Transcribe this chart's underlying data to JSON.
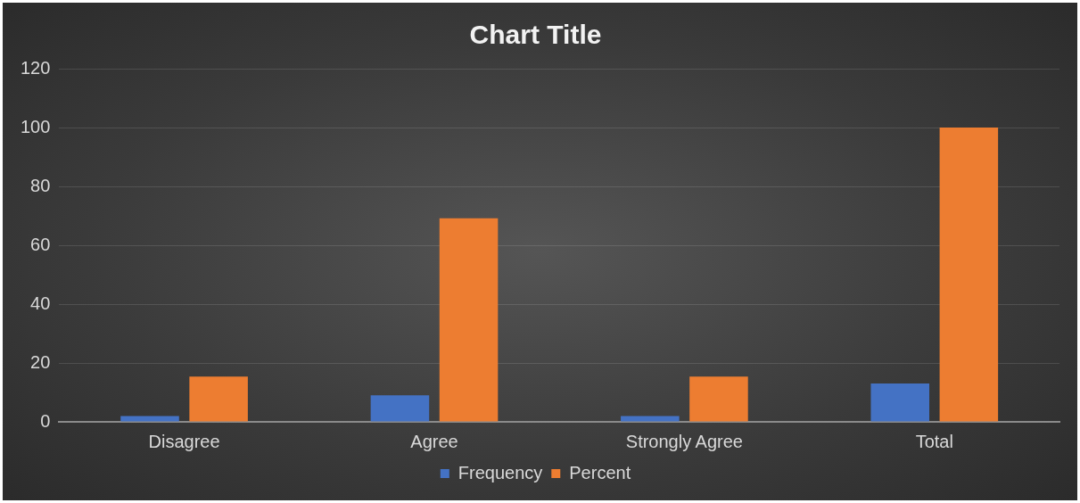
{
  "chart_data": {
    "type": "bar",
    "title": "Chart Title",
    "categories": [
      "Disagree",
      "Agree",
      "Strongly Agree",
      "Total"
    ],
    "series": [
      {
        "name": "Frequency",
        "color": "#4472c4",
        "values": [
          2,
          9,
          2,
          13
        ]
      },
      {
        "name": "Percent",
        "color": "#ed7d31",
        "values": [
          15.4,
          69.2,
          15.4,
          100
        ]
      }
    ],
    "ylim": [
      0,
      120
    ],
    "yticks": [
      0,
      20,
      40,
      60,
      80,
      100,
      120
    ],
    "grid": "y",
    "legend": "bottom"
  }
}
